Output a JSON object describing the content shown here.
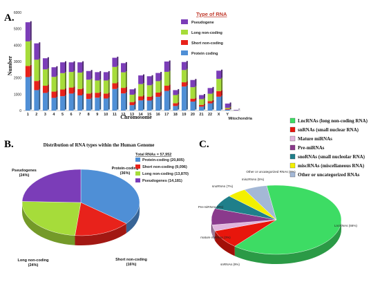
{
  "panels": {
    "a": "A.",
    "b": "B.",
    "c": "C."
  },
  "chart_data": [
    {
      "type": "bar",
      "stacked": true,
      "xlabel": "Chromosome",
      "ylabel": "Number",
      "ylim": [
        0,
        6000
      ],
      "yticks": [
        0,
        1000,
        2000,
        3000,
        4000,
        5000,
        6000
      ],
      "legend_title": "Type of RNA",
      "legend_placement": "top-right",
      "categories": [
        "1",
        "2",
        "3",
        "4",
        "5",
        "6",
        "7",
        "8",
        "9",
        "10",
        "11",
        "12",
        "13",
        "14",
        "15",
        "16",
        "17",
        "18",
        "19",
        "20",
        "21",
        "22",
        "X",
        "Y",
        "Mitochondria"
      ],
      "series": [
        {
          "name": "Protein coding",
          "color": "#4f8fd6",
          "values": [
            2050,
            1250,
            1080,
            780,
            880,
            1040,
            930,
            710,
            790,
            740,
            1320,
            1050,
            330,
            620,
            610,
            840,
            1200,
            280,
            1470,
            550,
            240,
            440,
            850,
            60,
            15
          ]
        },
        {
          "name": "Short non-coding",
          "color": "#e8221b",
          "values": [
            680,
            560,
            440,
            380,
            410,
            370,
            390,
            330,
            300,
            300,
            350,
            340,
            190,
            250,
            240,
            260,
            320,
            170,
            260,
            180,
            110,
            140,
            340,
            50,
            5
          ]
        },
        {
          "name": "Long non-coding",
          "color": "#a6dc3a",
          "values": [
            1500,
            1300,
            1000,
            900,
            1000,
            950,
            1000,
            850,
            750,
            800,
            1000,
            950,
            450,
            750,
            700,
            700,
            850,
            500,
            750,
            700,
            350,
            450,
            750,
            60,
            4
          ]
        },
        {
          "name": "Pseudogene",
          "color": "#7b3db8",
          "values": [
            1170,
            1000,
            680,
            590,
            660,
            590,
            630,
            530,
            510,
            510,
            560,
            560,
            330,
            530,
            550,
            500,
            630,
            300,
            490,
            440,
            250,
            350,
            500,
            260,
            22
          ]
        }
      ]
    },
    {
      "type": "pie",
      "title": "Distribution of RNA types within the Human Genome",
      "total_label": "Total RNAs = 57,952",
      "slices": [
        {
          "name": "Protein-coding",
          "value": 20805,
          "label": "Protein-coding",
          "pct": "(36%)",
          "legend": "Protein-coding (20,805)",
          "color": "#4f8fd6"
        },
        {
          "name": "Short non-coding",
          "value": 9096,
          "label": "Short non-coding",
          "pct": "(16%)",
          "legend": "Short non-coding (9,096)",
          "color": "#e8221b"
        },
        {
          "name": "Long non-coding",
          "value": 13870,
          "label": "Long non-coding",
          "pct": "(24%)",
          "legend": "Long non-coding (13,870)",
          "color": "#a6dc3a"
        },
        {
          "name": "Pseudogenes",
          "value": 14181,
          "label": "Pseudogenes",
          "pct": "(24%)",
          "legend": "Pseudogenes (14,181)",
          "color": "#7b3db8"
        }
      ]
    },
    {
      "type": "pie",
      "slices": [
        {
          "name": "LncRNAs",
          "value": 66,
          "label": "LncRNAs (66%)",
          "legend": "LncRNAs (long non-coding RNA)",
          "color": "#3ddc64"
        },
        {
          "name": "snRNAs",
          "value": 9,
          "label": "snRNAs (9%)",
          "legend": "snRNAs (small nuclear RNA)",
          "color": "#e8160c"
        },
        {
          "name": "mature miRNAs",
          "value": 3,
          "label": "mature miRNAs (3%)",
          "legend": "Mature miRNAs",
          "color": "#e0b4dc"
        },
        {
          "name": "Pre-miRNAs",
          "value": 8,
          "label": "Pre-miRNAs (8%)",
          "legend": "Pre-miRNAs",
          "color": "#8a3a8c"
        },
        {
          "name": "snoRNAs",
          "value": 7,
          "label": "snoRNAs (7%)",
          "legend": "snoRNAs (small nucleolar RNA)",
          "color": "#1f7f8a"
        },
        {
          "name": "miscRNAs",
          "value": 5,
          "label": "miscRNAs (5%)",
          "legend": "miscRNAs (miscellaneous RNA)",
          "color": "#f3f000"
        },
        {
          "name": "Other",
          "value": 6,
          "label": "Other or uncategorized RNAs (6%)",
          "legend": "Other or uncategorized RNAs",
          "color": "#a4b8d6"
        }
      ]
    }
  ]
}
